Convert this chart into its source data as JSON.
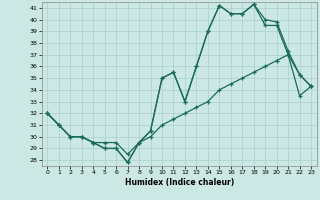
{
  "xlabel": "Humidex (Indice chaleur)",
  "bg_color": "#cce8e4",
  "grid_color": "#aacfcb",
  "line_color": "#1a6b5a",
  "xlim": [
    -0.5,
    23.5
  ],
  "ylim": [
    27.5,
    41.5
  ],
  "xticks": [
    0,
    1,
    2,
    3,
    4,
    5,
    6,
    7,
    8,
    9,
    10,
    11,
    12,
    13,
    14,
    15,
    16,
    17,
    18,
    19,
    20,
    21,
    22,
    23
  ],
  "yticks": [
    28,
    29,
    30,
    31,
    32,
    33,
    34,
    35,
    36,
    37,
    38,
    39,
    40,
    41
  ],
  "series1_x": [
    0,
    1,
    2,
    3,
    4,
    5,
    6,
    7,
    8,
    9,
    10,
    11,
    12,
    13,
    14,
    15,
    16,
    17,
    18,
    19,
    20,
    21,
    22,
    23
  ],
  "series1_y": [
    32,
    31,
    30,
    30,
    29.5,
    29,
    29,
    27.8,
    29.5,
    30.5,
    35,
    35.5,
    33,
    36,
    39,
    41.2,
    40.5,
    40.5,
    41.3,
    39.5,
    39.5,
    37,
    35.3,
    34.3
  ],
  "series2_x": [
    0,
    1,
    2,
    3,
    4,
    5,
    6,
    7,
    8,
    9,
    10,
    11,
    12,
    13,
    14,
    15,
    16,
    17,
    18,
    19,
    20,
    21,
    22,
    23
  ],
  "series2_y": [
    32,
    31,
    30,
    30,
    29.5,
    29,
    29,
    27.8,
    29.5,
    30.5,
    35,
    35.5,
    33,
    36,
    39,
    41.2,
    40.5,
    40.5,
    41.3,
    40,
    39.8,
    37.3,
    35.3,
    34.3
  ],
  "series3_x": [
    0,
    1,
    2,
    3,
    4,
    5,
    6,
    7,
    8,
    9,
    10,
    11,
    12,
    13,
    14,
    15,
    16,
    17,
    18,
    19,
    20,
    21,
    22,
    23
  ],
  "series3_y": [
    32,
    31,
    30,
    30,
    29.5,
    29.5,
    29.5,
    28.5,
    29.5,
    30,
    31,
    31.5,
    32,
    32.5,
    33,
    34,
    34.5,
    35,
    35.5,
    36,
    36.5,
    37,
    33.5,
    34.3
  ]
}
